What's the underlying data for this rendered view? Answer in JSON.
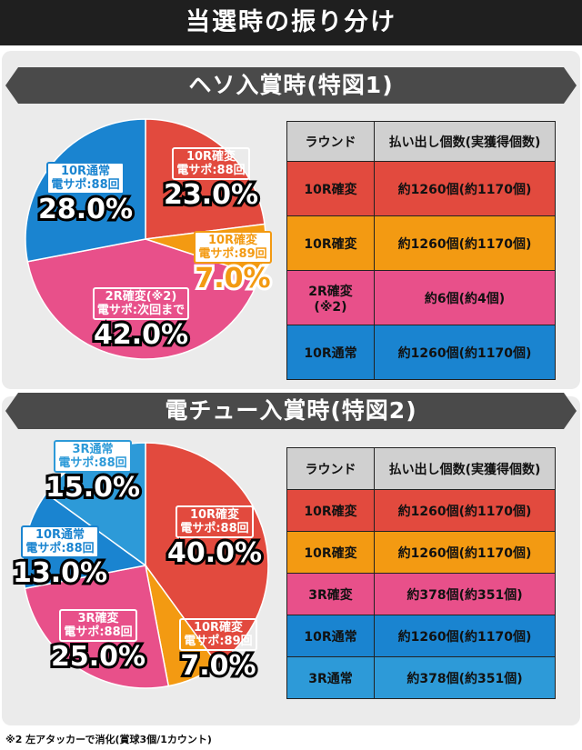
{
  "page_title": "当選時の振り分け",
  "footnote": "※2 左アタッカーで消化(賞球3個/1カウント)",
  "colors": {
    "red": "#e24a3e",
    "orange": "#f39a12",
    "pink": "#e8508a",
    "blue": "#1a84d0",
    "blue_light": "#2d9ad8"
  },
  "chart_data": [
    {
      "type": "pie",
      "title": "ヘソ入賞時(特図1)",
      "slices": [
        {
          "line1": "10R確変",
          "line2": "電サポ:88回",
          "value": 23.0,
          "pct": "23.0%",
          "color": "#e24a3e"
        },
        {
          "line1": "10R確変",
          "line2": "電サポ:89回",
          "value": 7.0,
          "pct": "7.0%",
          "color": "#f39a12"
        },
        {
          "line1": "2R確変(※2)",
          "line2": "電サポ:次回まで",
          "value": 42.0,
          "pct": "42.0%",
          "color": "#e8508a"
        },
        {
          "line1": "10R通常",
          "line2": "電サポ:88回",
          "value": 28.0,
          "pct": "28.0%",
          "color": "#1a84d0"
        }
      ],
      "table": {
        "headers": [
          "ラウンド",
          "払い出し個数(実獲得個数)"
        ],
        "rows": [
          {
            "round": "10R確変",
            "payout": "約1260個(約1170個)",
            "color": "#e24a3e"
          },
          {
            "round": "10R確変",
            "payout": "約1260個(約1170個)",
            "color": "#f39a12"
          },
          {
            "round": "2R確変",
            "round2": "(※2)",
            "payout": "約6個(約4個)",
            "color": "#e8508a"
          },
          {
            "round": "10R通常",
            "payout": "約1260個(約1170個)",
            "color": "#1a84d0"
          }
        ]
      }
    },
    {
      "type": "pie",
      "title": "電チュー入賞時(特図2)",
      "slices": [
        {
          "line1": "10R確変",
          "line2": "電サポ:88回",
          "value": 40.0,
          "pct": "40.0%",
          "color": "#e24a3e"
        },
        {
          "line1": "10R確変",
          "line2": "電サポ:89回",
          "value": 7.0,
          "pct": "7.0%",
          "color": "#f39a12"
        },
        {
          "line1": "3R確変",
          "line2": "電サポ:88回",
          "value": 25.0,
          "pct": "25.0%",
          "color": "#e8508a"
        },
        {
          "line1": "10R通常",
          "line2": "電サポ:88回",
          "value": 13.0,
          "pct": "13.0%",
          "color": "#1a84d0"
        },
        {
          "line1": "3R通常",
          "line2": "電サポ:88回",
          "value": 15.0,
          "pct": "15.0%",
          "color": "#2d9ad8"
        }
      ],
      "table": {
        "headers": [
          "ラウンド",
          "払い出し個数(実獲得個数)"
        ],
        "rows": [
          {
            "round": "10R確変",
            "payout": "約1260個(約1170個)",
            "color": "#e24a3e"
          },
          {
            "round": "10R確変",
            "payout": "約1260個(約1170個)",
            "color": "#f39a12"
          },
          {
            "round": "3R確変",
            "payout": "約378個(約351個)",
            "color": "#e8508a"
          },
          {
            "round": "10R通常",
            "payout": "約1260個(約1170個)",
            "color": "#1a84d0"
          },
          {
            "round": "3R通常",
            "payout": "約378個(約351個)",
            "color": "#2d9ad8"
          }
        ]
      }
    }
  ]
}
